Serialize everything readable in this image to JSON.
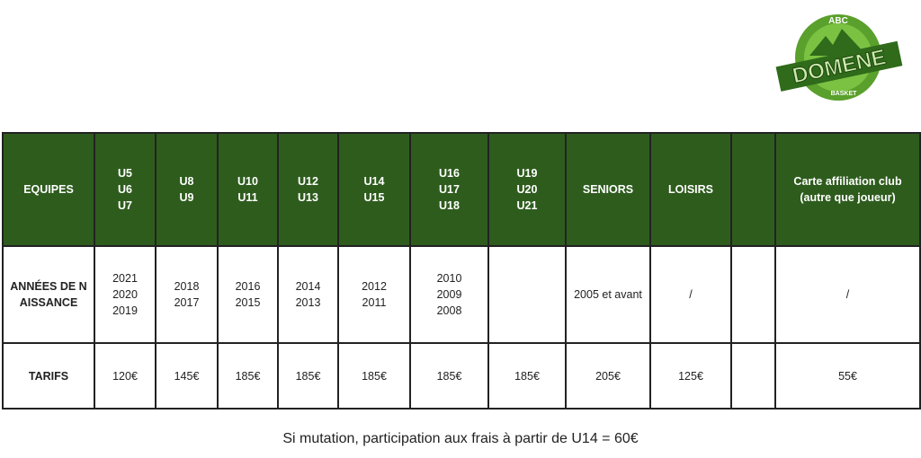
{
  "logo": {
    "top": "ABC",
    "name": "DOMENE",
    "bottom": "BASKET"
  },
  "table": {
    "header": [
      [
        "EQUIPES"
      ],
      [
        "U5",
        "U6",
        "U7"
      ],
      [
        "U8",
        "U9"
      ],
      [
        "U10",
        "U11"
      ],
      [
        "U12",
        "U13"
      ],
      [
        "U14",
        "U15"
      ],
      [
        "U16",
        "U17",
        "U18"
      ],
      [
        "U19",
        "U20",
        "U21"
      ],
      [
        "SENIORS"
      ],
      [
        "LOISIRS"
      ],
      null,
      [
        "Carte affiliation club (autre que joueur)"
      ]
    ],
    "rows": [
      [
        [
          "ANNÉES DE NAISSANCE"
        ],
        [
          "2021",
          "2020",
          "2019"
        ],
        [
          "2018",
          "2017"
        ],
        [
          "2016",
          "2015"
        ],
        [
          "2014",
          "2013"
        ],
        [
          "2012",
          "2011"
        ],
        [
          "2010",
          "2009",
          "2008"
        ],
        null,
        [
          "2005 et avant"
        ],
        [
          "/"
        ],
        null,
        [
          "/"
        ]
      ],
      [
        [
          "TARIFS"
        ],
        [
          "120€"
        ],
        [
          "145€"
        ],
        [
          "185€"
        ],
        [
          "185€"
        ],
        [
          "185€"
        ],
        [
          "185€"
        ],
        [
          "185€"
        ],
        [
          "205€"
        ],
        [
          "125€"
        ],
        null,
        [
          "55€"
        ]
      ]
    ]
  },
  "footer": "Si mutation, participation aux frais à partir de U14 = 60€"
}
